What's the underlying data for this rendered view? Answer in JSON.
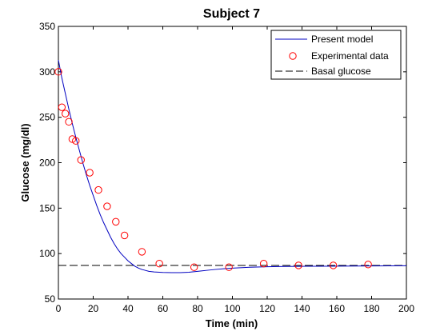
{
  "chart_data": {
    "type": "line",
    "title": "Subject 7",
    "xlabel": "Time (min)",
    "ylabel": "Glucose (mg/dl)",
    "xlim": [
      0,
      200
    ],
    "ylim": [
      50,
      350
    ],
    "xticks": [
      0,
      20,
      40,
      60,
      80,
      100,
      120,
      140,
      160,
      180,
      200
    ],
    "yticks": [
      50,
      100,
      150,
      200,
      250,
      300,
      350
    ],
    "grid": false,
    "legend_position": "top-right",
    "series": [
      {
        "name": "Present model",
        "style": "solid-line",
        "color": "#0000c0",
        "x": [
          0,
          2,
          4,
          6,
          8,
          10,
          12,
          14,
          16,
          18,
          20,
          22,
          24,
          26,
          28,
          30,
          32,
          34,
          36,
          38,
          40,
          42,
          44,
          46,
          48,
          50,
          52,
          55,
          60,
          65,
          70,
          75,
          80,
          85,
          90,
          95,
          100,
          110,
          120,
          130,
          140,
          150,
          160,
          170,
          180,
          190,
          200
        ],
        "y": [
          313,
          293,
          276,
          259,
          243,
          228,
          214,
          200,
          187,
          175,
          164,
          153,
          143,
          134,
          126,
          118,
          111,
          105,
          100,
          96,
          92,
          89,
          86,
          84,
          82.5,
          81.5,
          80.5,
          79.8,
          79.2,
          79,
          79,
          79.5,
          80.5,
          81.5,
          82.5,
          83.3,
          84,
          85,
          85.5,
          85.8,
          86,
          86.1,
          86.2,
          86.3,
          86.4,
          86.5,
          86.6
        ]
      },
      {
        "name": "Experimental data",
        "style": "markers-circle",
        "color": "#ff0000",
        "x": [
          0,
          2,
          4,
          6,
          8,
          10,
          13,
          18,
          23,
          28,
          33,
          38,
          48,
          58,
          78,
          98,
          118,
          138,
          158,
          178
        ],
        "y": [
          300,
          261,
          254,
          245,
          226,
          224,
          203,
          189,
          170,
          152,
          135,
          120,
          102,
          89,
          85,
          85,
          89,
          87,
          87,
          88
        ]
      },
      {
        "name": "Basal glucose",
        "style": "dashed-line",
        "color": "#000000",
        "x": [
          0,
          200
        ],
        "y": [
          87,
          87
        ]
      }
    ]
  }
}
